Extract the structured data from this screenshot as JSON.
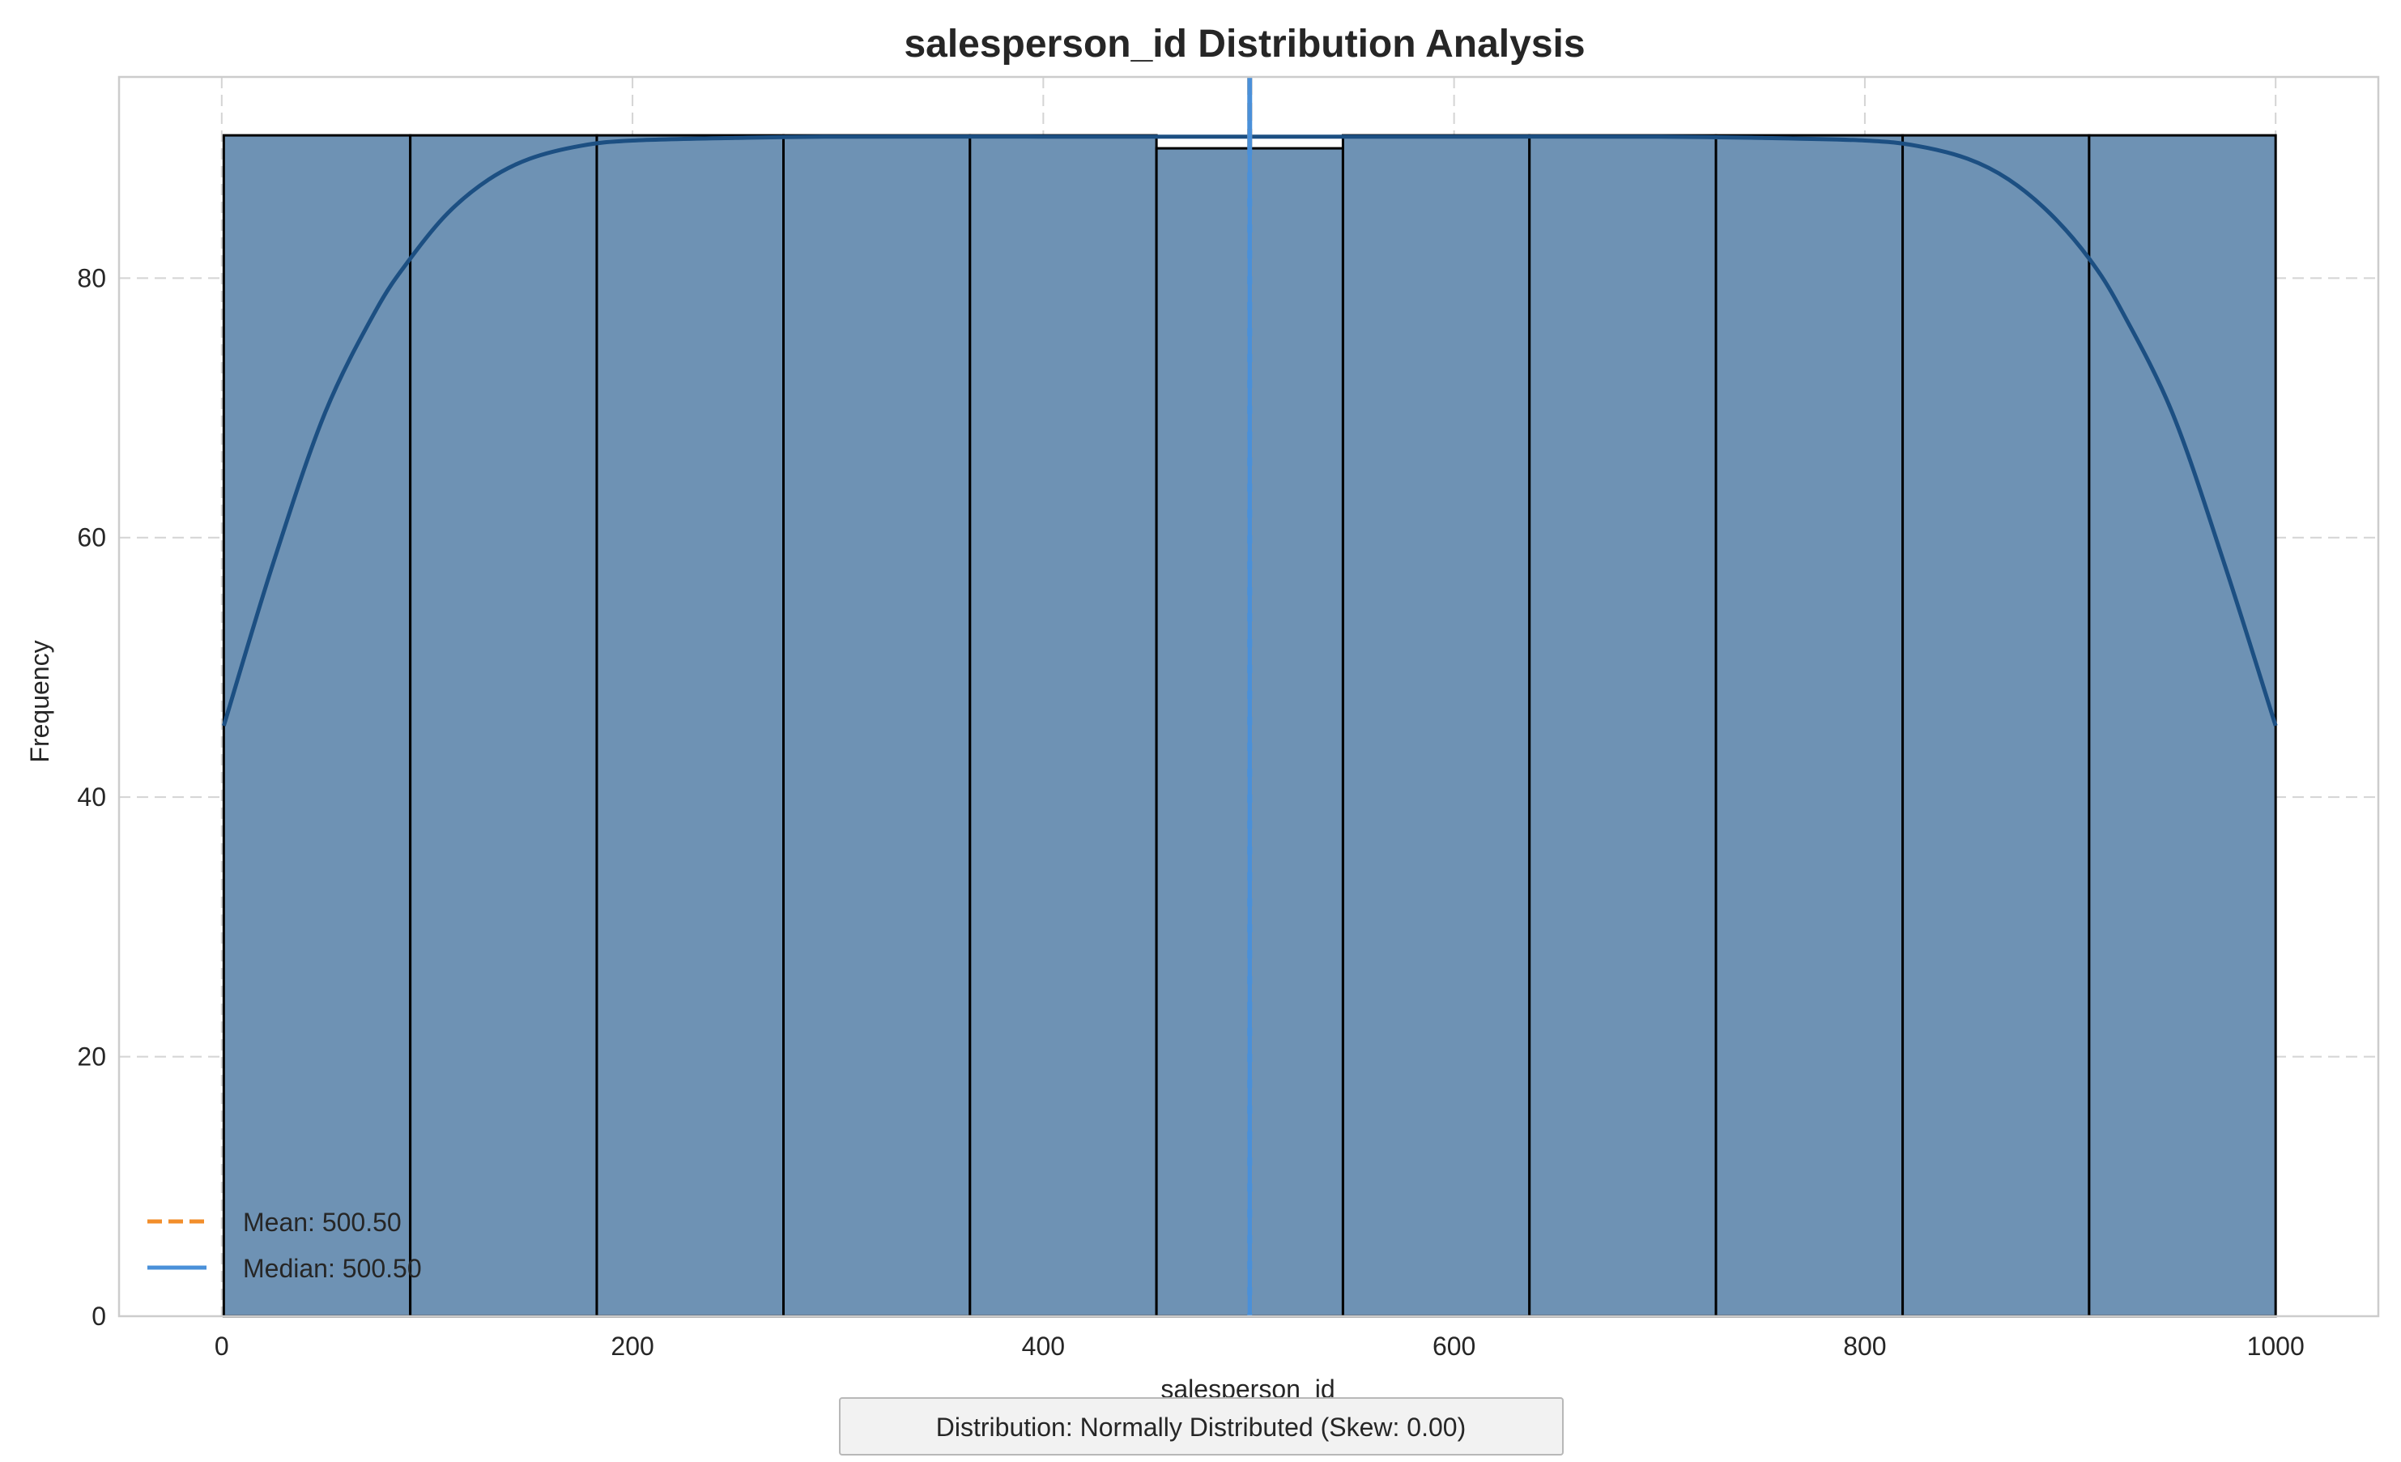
{
  "chart_data": {
    "type": "bar",
    "title": "salesperson_id Distribution Analysis",
    "xlabel": "salesperson_id",
    "ylabel": "Frequency",
    "xlim": [
      -50,
      1050
    ],
    "ylim": [
      0,
      95.5
    ],
    "xticks": [
      0,
      200,
      400,
      600,
      800,
      1000
    ],
    "yticks": [
      0,
      20,
      40,
      60,
      80
    ],
    "grid": true,
    "bins": [
      {
        "x0": 1,
        "x1": 91.8,
        "count": 91
      },
      {
        "x0": 91.8,
        "x1": 182.6,
        "count": 91
      },
      {
        "x0": 182.6,
        "x1": 273.5,
        "count": 91
      },
      {
        "x0": 273.5,
        "x1": 364.3,
        "count": 91
      },
      {
        "x0": 364.3,
        "x1": 455.1,
        "count": 91
      },
      {
        "x0": 455.1,
        "x1": 545.9,
        "count": 90
      },
      {
        "x0": 545.9,
        "x1": 636.7,
        "count": 91
      },
      {
        "x0": 636.7,
        "x1": 727.5,
        "count": 91
      },
      {
        "x0": 727.5,
        "x1": 818.4,
        "count": 91
      },
      {
        "x0": 818.4,
        "x1": 909.2,
        "count": 91
      },
      {
        "x0": 909.2,
        "x1": 1000,
        "count": 91
      }
    ],
    "kde": {
      "x": [
        1,
        25,
        50,
        75,
        91.8,
        110,
        130,
        150,
        175,
        200,
        250,
        300,
        400,
        500,
        600,
        700,
        750,
        800,
        825,
        850,
        870,
        890,
        909.2,
        925,
        950,
        975,
        1000
      ],
      "y": [
        45.5,
        58.0,
        69.5,
        77.5,
        81.5,
        85.0,
        87.6,
        89.2,
        90.2,
        90.6,
        90.8,
        90.9,
        90.9,
        90.9,
        90.9,
        90.9,
        90.8,
        90.6,
        90.2,
        89.2,
        87.6,
        85.0,
        81.5,
        77.5,
        69.5,
        58.0,
        45.5
      ]
    },
    "mean": 500.5,
    "median": 500.5,
    "legend": {
      "placement": "lower-left",
      "items": [
        {
          "label": "Mean: 500.50",
          "color": "#f28e2b",
          "style": "dashed"
        },
        {
          "label": "Median: 500.50",
          "color": "#4a90d9",
          "style": "solid"
        }
      ]
    },
    "annotation": "Distribution: Normally Distributed (Skew: 0.00)",
    "colors": {
      "bar_fill": "#6e92b4",
      "bar_edge": "#000000",
      "kde": "#1c4f82",
      "mean": "#f28e2b",
      "median": "#4a90d9",
      "grid": "#d4d4d4",
      "spine": "#cccccc"
    }
  }
}
